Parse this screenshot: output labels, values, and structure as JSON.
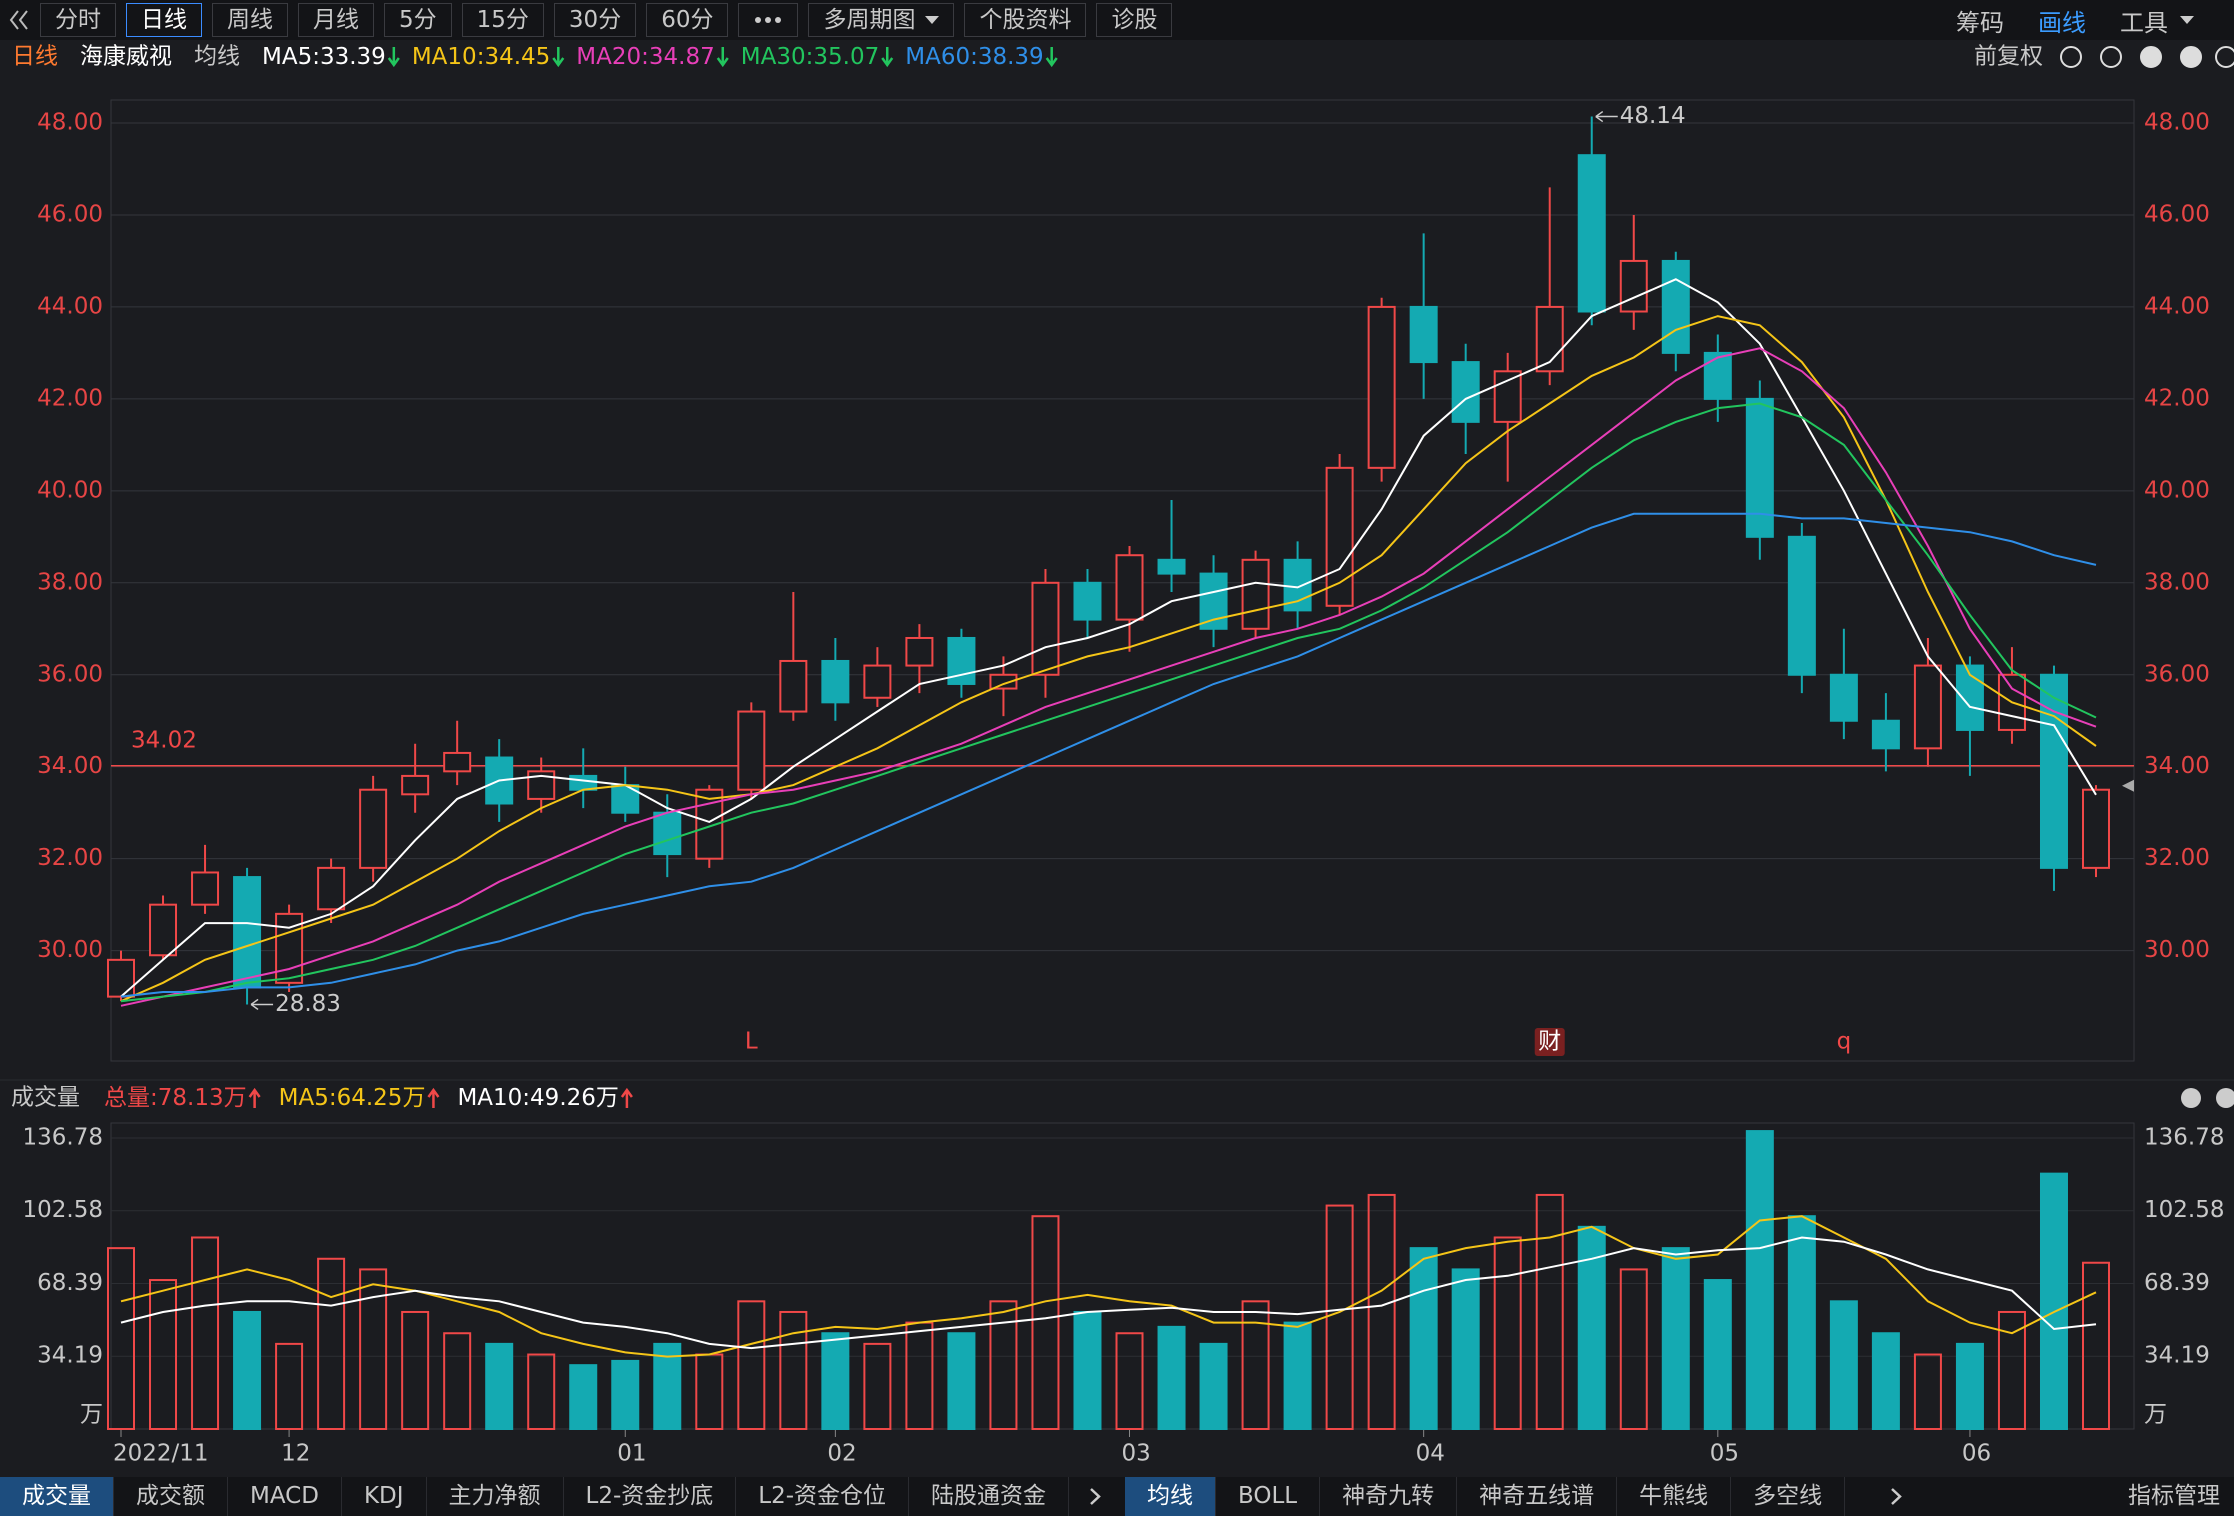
{
  "toolbar": {
    "tabs": [
      "分时",
      "日线",
      "周线",
      "月线",
      "5分",
      "15分",
      "30分",
      "60分",
      "多周期图",
      "个股资料",
      "诊股"
    ],
    "active_index": 1,
    "right": [
      "筹码",
      "画线",
      "工具"
    ]
  },
  "info_bar": {
    "period": "日线",
    "stock": "海康威视",
    "indicator": "均线",
    "adjust": "前复权"
  },
  "chart_data": [
    {
      "type": "candlestick",
      "categories": [
        "2022/11",
        null,
        null,
        null,
        "12",
        null,
        null,
        null,
        null,
        null,
        null,
        null,
        "01",
        null,
        null,
        null,
        null,
        "02",
        null,
        null,
        null,
        null,
        null,
        null,
        "03",
        null,
        null,
        null,
        null,
        null,
        null,
        "04",
        null,
        null,
        null,
        null,
        null,
        null,
        "05",
        null,
        null,
        null,
        null,
        null,
        "06",
        null,
        null,
        null
      ],
      "open": [
        29.0,
        29.9,
        31.0,
        31.6,
        29.3,
        30.9,
        31.8,
        33.4,
        33.9,
        34.2,
        33.3,
        33.8,
        33.6,
        33.0,
        32.0,
        33.5,
        35.2,
        36.3,
        35.5,
        36.2,
        36.8,
        35.7,
        36.0,
        38.0,
        37.2,
        38.5,
        38.2,
        37.0,
        38.5,
        37.5,
        40.5,
        44.0,
        42.8,
        41.5,
        42.6,
        47.3,
        43.9,
        45.0,
        43.0,
        42.0,
        39.0,
        36.0,
        35.0,
        34.4,
        36.2,
        34.8,
        36.0,
        31.8
      ],
      "high": [
        30.0,
        31.2,
        32.3,
        31.8,
        31.0,
        32.0,
        33.8,
        34.5,
        35.0,
        34.6,
        34.2,
        34.4,
        34.0,
        33.4,
        33.6,
        35.4,
        37.8,
        36.8,
        36.6,
        37.1,
        37.0,
        36.4,
        38.3,
        38.3,
        38.8,
        39.8,
        38.6,
        38.7,
        38.9,
        40.8,
        44.2,
        45.6,
        43.2,
        43.0,
        46.6,
        48.14,
        46.0,
        45.2,
        43.4,
        42.4,
        39.3,
        37.0,
        35.6,
        36.8,
        36.4,
        36.6,
        36.2,
        33.6
      ],
      "low": [
        28.9,
        29.8,
        30.8,
        28.83,
        29.1,
        30.6,
        31.5,
        33.0,
        33.6,
        32.8,
        33.0,
        33.1,
        32.8,
        31.6,
        31.8,
        33.3,
        35.0,
        35.0,
        35.3,
        35.6,
        35.5,
        35.1,
        35.5,
        36.8,
        36.5,
        37.8,
        36.6,
        36.8,
        37.0,
        37.3,
        40.2,
        42.0,
        40.8,
        40.2,
        42.3,
        43.6,
        43.5,
        42.6,
        41.5,
        38.5,
        35.6,
        34.6,
        33.9,
        34.0,
        33.8,
        34.5,
        31.3,
        31.6
      ],
      "close": [
        29.8,
        31.0,
        31.7,
        29.2,
        30.8,
        31.8,
        33.5,
        33.8,
        34.3,
        33.2,
        33.9,
        33.5,
        33.0,
        32.1,
        33.5,
        35.2,
        36.3,
        35.4,
        36.2,
        36.8,
        35.8,
        36.0,
        38.0,
        37.2,
        38.6,
        38.2,
        37.0,
        38.5,
        37.4,
        40.5,
        44.0,
        42.8,
        41.5,
        42.6,
        44.0,
        43.9,
        45.0,
        43.0,
        42.0,
        39.0,
        36.0,
        35.0,
        34.4,
        36.2,
        34.8,
        36.0,
        31.8,
        33.5
      ],
      "up_color": "#f04848",
      "down_color": "#14aab2",
      "ylim": [
        27.6,
        48.5
      ],
      "yticks": [
        {
          "value": 30,
          "label": "30.00"
        },
        {
          "value": 32,
          "label": "32.00"
        },
        {
          "value": 34,
          "label": "34.00"
        },
        {
          "value": 36,
          "label": "36.00"
        },
        {
          "value": 38,
          "label": "38.00"
        },
        {
          "value": 40,
          "label": "40.00"
        },
        {
          "value": 42,
          "label": "42.00"
        },
        {
          "value": 44,
          "label": "44.00"
        },
        {
          "value": 46,
          "label": "46.00"
        },
        {
          "value": 48,
          "label": "48.00"
        }
      ],
      "grid": true,
      "reference_line": 34.02,
      "legend_separator": ":",
      "markers": [
        "L",
        "财",
        "q"
      ],
      "series": [
        {
          "name": "MA5",
          "color": "#ffffff",
          "values": [
            29.0,
            29.8,
            30.6,
            30.6,
            30.5,
            30.8,
            31.4,
            32.4,
            33.3,
            33.7,
            33.8,
            33.7,
            33.6,
            33.1,
            32.8,
            33.3,
            34.0,
            34.6,
            35.2,
            35.8,
            36.0,
            36.2,
            36.6,
            36.8,
            37.1,
            37.6,
            37.8,
            38.0,
            37.9,
            38.3,
            39.6,
            41.2,
            42.0,
            42.4,
            42.8,
            43.8,
            44.2,
            44.6,
            44.1,
            43.2,
            41.6,
            40.0,
            38.2,
            36.4,
            35.3,
            35.1,
            34.9,
            33.39
          ]
        },
        {
          "name": "MA10",
          "color": "#f5c518",
          "values": [
            28.9,
            29.3,
            29.8,
            30.1,
            30.4,
            30.7,
            31.0,
            31.5,
            32.0,
            32.6,
            33.1,
            33.5,
            33.6,
            33.5,
            33.3,
            33.4,
            33.6,
            34.0,
            34.4,
            34.9,
            35.4,
            35.8,
            36.1,
            36.4,
            36.6,
            36.9,
            37.2,
            37.4,
            37.6,
            38.0,
            38.6,
            39.6,
            40.6,
            41.3,
            41.9,
            42.5,
            42.9,
            43.5,
            43.8,
            43.6,
            42.8,
            41.6,
            39.8,
            37.8,
            36.0,
            35.4,
            35.1,
            34.45
          ]
        },
        {
          "name": "MA20",
          "color": "#e83fb8",
          "values": [
            28.8,
            29.0,
            29.2,
            29.4,
            29.6,
            29.9,
            30.2,
            30.6,
            31.0,
            31.5,
            31.9,
            32.3,
            32.7,
            33.0,
            33.2,
            33.4,
            33.5,
            33.7,
            33.9,
            34.2,
            34.5,
            34.9,
            35.3,
            35.6,
            35.9,
            36.2,
            36.5,
            36.8,
            37.0,
            37.3,
            37.7,
            38.2,
            38.9,
            39.6,
            40.3,
            41.0,
            41.7,
            42.4,
            42.9,
            43.1,
            42.6,
            41.8,
            40.4,
            38.8,
            37.0,
            35.7,
            35.2,
            34.87
          ]
        },
        {
          "name": "MA30",
          "color": "#22c55e",
          "values": [
            28.9,
            29.0,
            29.1,
            29.3,
            29.4,
            29.6,
            29.8,
            30.1,
            30.5,
            30.9,
            31.3,
            31.7,
            32.1,
            32.4,
            32.7,
            33.0,
            33.2,
            33.5,
            33.8,
            34.1,
            34.4,
            34.7,
            35.0,
            35.3,
            35.6,
            35.9,
            36.2,
            36.5,
            36.8,
            37.0,
            37.4,
            37.9,
            38.5,
            39.1,
            39.8,
            40.5,
            41.1,
            41.5,
            41.8,
            41.9,
            41.6,
            41.0,
            39.8,
            38.6,
            37.3,
            36.1,
            35.5,
            35.07
          ]
        },
        {
          "name": "MA60",
          "color": "#2f8fe8",
          "values": [
            29.0,
            29.1,
            29.1,
            29.2,
            29.2,
            29.3,
            29.5,
            29.7,
            30.0,
            30.2,
            30.5,
            30.8,
            31.0,
            31.2,
            31.4,
            31.5,
            31.8,
            32.2,
            32.6,
            33.0,
            33.4,
            33.8,
            34.2,
            34.6,
            35.0,
            35.4,
            35.8,
            36.1,
            36.4,
            36.8,
            37.2,
            37.6,
            38.0,
            38.4,
            38.8,
            39.2,
            39.5,
            39.5,
            39.5,
            39.5,
            39.4,
            39.4,
            39.3,
            39.2,
            39.1,
            38.9,
            38.6,
            38.39
          ]
        }
      ]
    },
    {
      "type": "bar",
      "title": "成交量",
      "total_label": "总量",
      "unit": "万",
      "values": [
        85,
        70,
        90,
        55,
        40,
        80,
        75,
        55,
        45,
        40,
        35,
        30,
        32,
        40,
        35,
        60,
        55,
        45,
        40,
        50,
        45,
        60,
        100,
        55,
        45,
        48,
        40,
        60,
        50,
        105,
        110,
        85,
        75,
        90,
        110,
        95,
        75,
        85,
        70,
        140,
        100,
        60,
        45,
        35,
        40,
        55,
        120,
        78.13
      ],
      "ylim": [
        0,
        143.8
      ],
      "yticks": [
        34.19,
        68.39,
        102.58,
        136.78
      ],
      "grid": true,
      "series": [
        {
          "name": "MA5",
          "color": "#f5c518",
          "values": [
            60,
            65,
            70,
            75,
            70,
            62,
            68,
            65,
            60,
            55,
            45,
            40,
            36,
            34,
            35,
            40,
            45,
            48,
            47,
            50,
            52,
            55,
            60,
            63,
            60,
            58,
            50,
            50,
            48,
            55,
            65,
            80,
            85,
            88,
            90,
            95,
            85,
            80,
            82,
            98,
            100,
            90,
            80,
            60,
            50,
            45,
            55,
            64.25
          ]
        },
        {
          "name": "MA10",
          "color": "#ffffff",
          "values": [
            50,
            55,
            58,
            60,
            60,
            58,
            62,
            65,
            62,
            60,
            55,
            50,
            48,
            45,
            40,
            38,
            40,
            42,
            44,
            46,
            48,
            50,
            52,
            55,
            56,
            57,
            55,
            55,
            54,
            56,
            58,
            65,
            70,
            72,
            76,
            80,
            85,
            82,
            84,
            85,
            90,
            88,
            82,
            75,
            70,
            65,
            47,
            49.26
          ]
        }
      ]
    }
  ],
  "bottom_tabs": {
    "left": [
      "成交量",
      "成交额",
      "MACD",
      "KDJ",
      "主力净额",
      "L2-资金抄底",
      "L2-资金仓位",
      "陆股通资金"
    ],
    "left_active": 0,
    "right": [
      "均线",
      "BOLL",
      "神奇九转",
      "神奇五线谱",
      "牛熊线",
      "多空线"
    ],
    "right_active": 0,
    "manage": "指标管理"
  }
}
